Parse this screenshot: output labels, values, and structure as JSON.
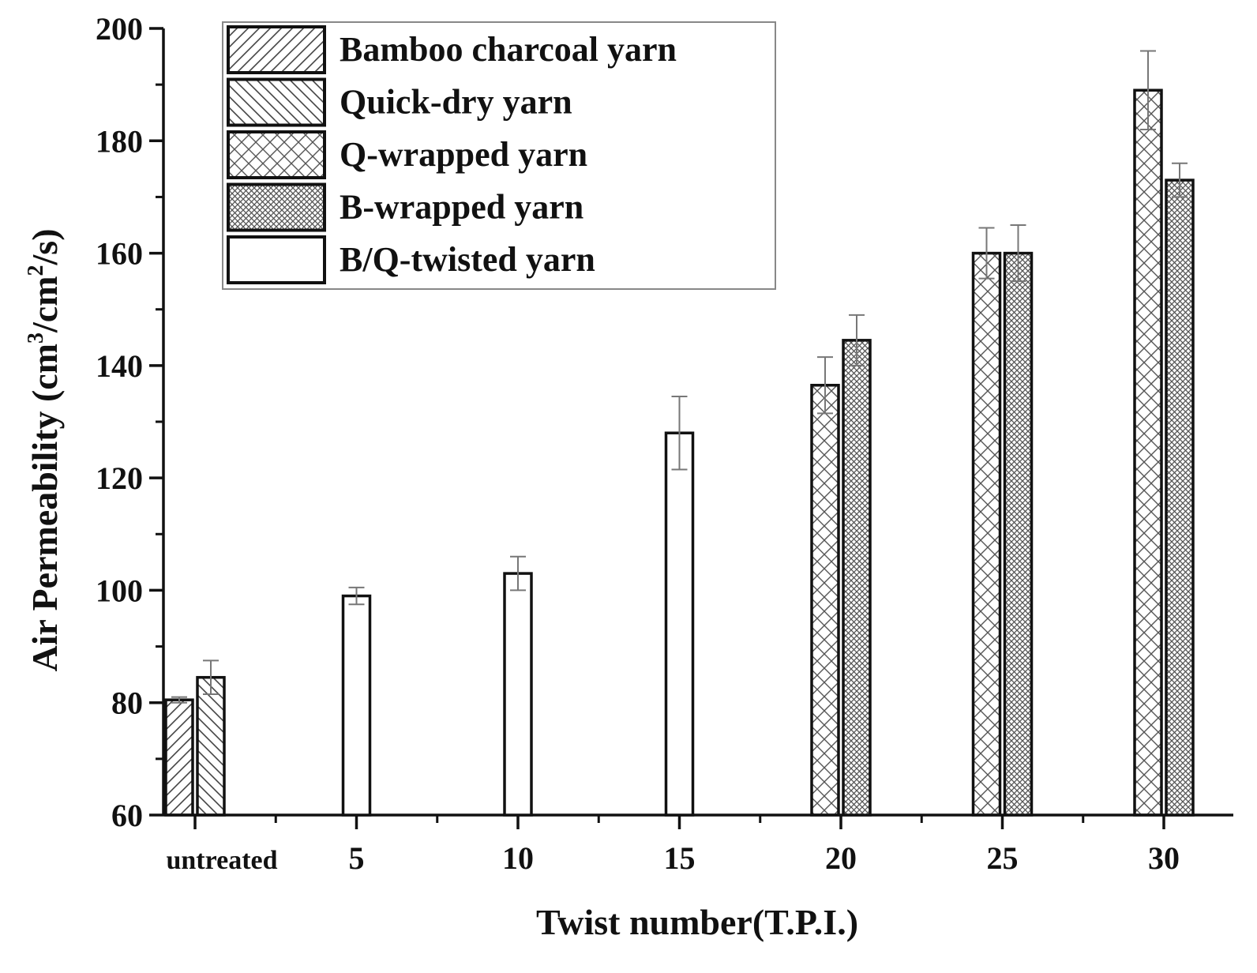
{
  "chart_data": {
    "type": "bar",
    "title": "",
    "xlabel": "Twist number(T.P.I.)",
    "ylabel_parts": [
      "Air Permeability (cm",
      "3",
      "/cm",
      "2",
      "/s)"
    ],
    "ylim": [
      60,
      200
    ],
    "yticks": [
      "60",
      "80",
      "100",
      "120",
      "140",
      "160",
      "180",
      "200"
    ],
    "categories": [
      "untreated",
      "5",
      "10",
      "15",
      "20",
      "25",
      "30"
    ],
    "grid": false,
    "legend_position": "top-left",
    "series": [
      {
        "name": "Bamboo charcoal yarn",
        "pattern": "diag-fwd",
        "values": [
          80.5,
          null,
          null,
          null,
          null,
          null,
          null
        ],
        "errors": [
          0.5,
          null,
          null,
          null,
          null,
          null,
          null
        ]
      },
      {
        "name": "Quick-dry yarn",
        "pattern": "diag-back",
        "values": [
          84.5,
          null,
          null,
          null,
          null,
          null,
          null
        ],
        "errors": [
          3.0,
          null,
          null,
          null,
          null,
          null,
          null
        ]
      },
      {
        "name": "Q-wrapped yarn",
        "pattern": "cross",
        "values": [
          null,
          null,
          null,
          null,
          136.5,
          160.0,
          189.0
        ],
        "errors": [
          null,
          null,
          null,
          null,
          5.0,
          4.5,
          7.0
        ]
      },
      {
        "name": "B-wrapped yarn",
        "pattern": "fine-cross",
        "values": [
          null,
          null,
          null,
          null,
          144.5,
          160.0,
          173.0
        ],
        "errors": [
          null,
          null,
          null,
          null,
          4.5,
          5.0,
          3.0
        ]
      },
      {
        "name": "B/Q-twisted yarn",
        "pattern": "none",
        "values": [
          null,
          99.0,
          103.0,
          128.0,
          null,
          null,
          null
        ],
        "errors": [
          null,
          1.5,
          3.0,
          6.5,
          null,
          null,
          null
        ]
      }
    ],
    "colors": {
      "bar_stroke": "#111111",
      "error_bar": "#777777",
      "hatch": "#444444",
      "legend_border": "#888888",
      "background": "#ffffff"
    }
  }
}
